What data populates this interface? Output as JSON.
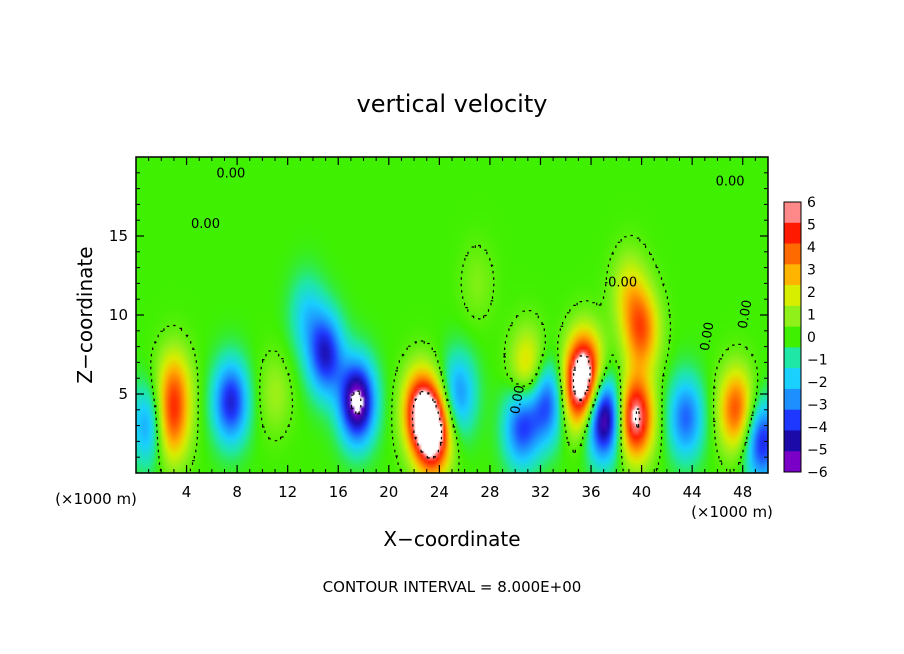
{
  "chart_data": {
    "type": "heatmap",
    "title": "vertical velocity",
    "xlabel": "X−coordinate",
    "ylabel": "Z−coordinate",
    "x_unit": "(×1000 m)",
    "y_unit": "(×1000 m)",
    "xlim": [
      0,
      50
    ],
    "ylim": [
      0,
      20
    ],
    "x_ticks": [
      4,
      8,
      12,
      16,
      20,
      24,
      28,
      32,
      36,
      40,
      44,
      48
    ],
    "y_ticks": [
      5,
      10,
      15
    ],
    "colorbar": {
      "min": -6,
      "max": 6,
      "tick_values": [
        6,
        5,
        4,
        3,
        2,
        1,
        0,
        -1,
        -2,
        -3,
        -4,
        -5,
        -6
      ],
      "tick_labels": [
        "6",
        "5",
        "4",
        "3",
        "2",
        "1",
        "0",
        "−1",
        "−2",
        "−3",
        "−4",
        "−5",
        "−6"
      ],
      "colors": [
        "#7a00c8",
        "#1c0aa8",
        "#1f38ff",
        "#1e8fff",
        "#19d0ff",
        "#1fe7a5",
        "#3ff000",
        "#8ff01a",
        "#d8ee00",
        "#ffb400",
        "#ff6a00",
        "#ff1a00",
        "#ff8888"
      ]
    },
    "background_value": 0,
    "features": [
      {
        "x": 17.5,
        "z": 4.5,
        "w": -6.5
      },
      {
        "x": 15.0,
        "z": 7.5,
        "w": -4.5
      },
      {
        "x": 13.5,
        "z": 10.0,
        "w": -1.8
      },
      {
        "x": 22.5,
        "z": 4.0,
        "w": 5.5
      },
      {
        "x": 23.5,
        "z": 2.5,
        "w": 7.0
      },
      {
        "x": 2.8,
        "z": 3.0,
        "w": 3.5
      },
      {
        "x": 3.0,
        "z": 5.5,
        "w": 3.0
      },
      {
        "x": 1.0,
        "z": 3.0,
        "w": -3.0
      },
      {
        "x": 7.5,
        "z": 4.5,
        "w": -4.5
      },
      {
        "x": 25.5,
        "z": 5.0,
        "w": -3.0
      },
      {
        "x": 30.5,
        "z": 3.0,
        "w": -4.0
      },
      {
        "x": 32.5,
        "z": 4.5,
        "w": -4.0
      },
      {
        "x": 31.0,
        "z": 6.5,
        "w": 3.0
      },
      {
        "x": 35.0,
        "z": 5.0,
        "w": 4.0
      },
      {
        "x": 35.5,
        "z": 6.5,
        "w": 5.5
      },
      {
        "x": 37.0,
        "z": 3.5,
        "w": -6.5
      },
      {
        "x": 39.5,
        "z": 3.5,
        "w": 6.5
      },
      {
        "x": 40.0,
        "z": 9.0,
        "w": 4.0
      },
      {
        "x": 39.0,
        "z": 11.5,
        "w": 2.0
      },
      {
        "x": 43.5,
        "z": 3.5,
        "w": -3.5
      },
      {
        "x": 47.5,
        "z": 4.0,
        "w": 4.5
      },
      {
        "x": 49.5,
        "z": 2.0,
        "w": -4.5
      },
      {
        "x": 11.0,
        "z": 5.0,
        "w": 1.2
      },
      {
        "x": 27.0,
        "z": 12.0,
        "w": 0.8
      }
    ],
    "contour_interval_label": "CONTOUR INTERVAL = 8.000E+00",
    "contour_labels": [
      "0.00",
      "0.00",
      "0.00",
      "0.00",
      "0.00",
      "0.00",
      "0.00"
    ]
  }
}
